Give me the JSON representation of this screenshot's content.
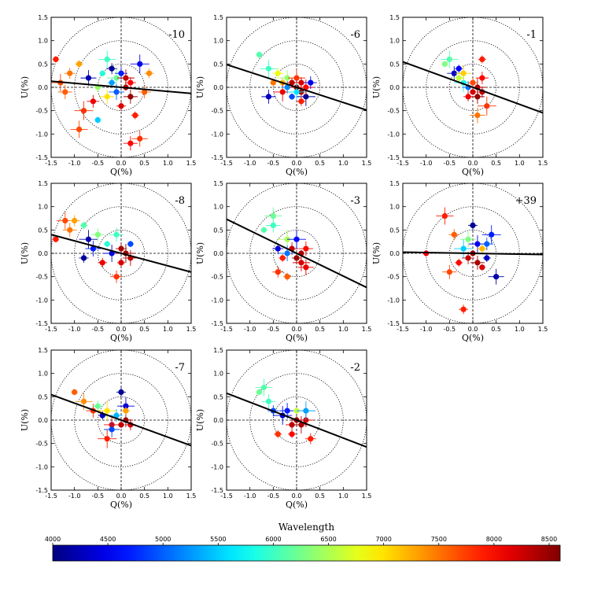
{
  "chart_data": {
    "type": "scatter",
    "description_axes": {
      "xlabel": "Q(%)",
      "ylabel": "U(%)"
    },
    "xlim": [
      -1.5,
      1.5
    ],
    "ylim": [
      -1.5,
      1.5
    ],
    "ticks": [
      "-1.5",
      "-1.0",
      "-0.5",
      "0.0",
      "0.5",
      "1.0",
      "1.5"
    ],
    "tick_values": [
      -1.5,
      -1.0,
      -0.5,
      0.0,
      0.5,
      1.0,
      1.5
    ],
    "circle_radii": [
      0.5,
      1.0,
      1.5
    ],
    "colorbar": {
      "title": "Wavelength",
      "min": 4000,
      "max": 8600,
      "ticks": [
        "4000",
        "4500",
        "5000",
        "5500",
        "6000",
        "6500",
        "7000",
        "7500",
        "8000",
        "8500"
      ],
      "tick_values": [
        4000,
        4500,
        5000,
        5500,
        6000,
        6500,
        7000,
        7500,
        8000,
        8500
      ]
    },
    "panels": [
      {
        "label": "-10",
        "axis_angle_deg": -5,
        "points": [
          [
            -1.4,
            0.6,
            7900
          ],
          [
            -1.3,
            0.1,
            7700
          ],
          [
            -1.2,
            -0.1,
            7600
          ],
          [
            -1.1,
            0.3,
            7500
          ],
          [
            -0.9,
            0.5,
            7300
          ],
          [
            -0.8,
            -0.5,
            7800
          ],
          [
            -0.7,
            0.2,
            4200
          ],
          [
            -0.6,
            -0.3,
            8100
          ],
          [
            -0.5,
            0.0,
            6400
          ],
          [
            -0.4,
            0.3,
            5900
          ],
          [
            -0.3,
            0.6,
            6000
          ],
          [
            -0.3,
            -0.2,
            7000
          ],
          [
            -0.2,
            0.4,
            4100
          ],
          [
            -0.2,
            0.1,
            5300
          ],
          [
            -0.1,
            0.2,
            6200
          ],
          [
            -0.1,
            -0.1,
            5000
          ],
          [
            0.0,
            0.3,
            4700
          ],
          [
            0.0,
            -0.4,
            8200
          ],
          [
            0.1,
            0.0,
            8400
          ],
          [
            0.1,
            0.2,
            8300
          ],
          [
            0.2,
            -0.2,
            8500
          ],
          [
            0.2,
            0.1,
            8000
          ],
          [
            0.3,
            -0.6,
            7900
          ],
          [
            0.4,
            0.5,
            4500
          ],
          [
            0.4,
            -1.1,
            7800
          ],
          [
            0.5,
            -0.1,
            7600
          ],
          [
            0.6,
            0.3,
            7400
          ],
          [
            -0.5,
            -0.7,
            5500
          ],
          [
            -0.9,
            -0.9,
            7700
          ],
          [
            0.2,
            -1.2,
            8000
          ]
        ]
      },
      {
        "label": "-6",
        "axis_angle_deg": -18,
        "points": [
          [
            -0.8,
            0.7,
            6100
          ],
          [
            -0.6,
            0.4,
            6000
          ],
          [
            -0.6,
            -0.2,
            4300
          ],
          [
            -0.4,
            0.3,
            6800
          ],
          [
            -0.3,
            0.1,
            7200
          ],
          [
            -0.3,
            -0.1,
            8100
          ],
          [
            -0.2,
            0.2,
            6400
          ],
          [
            -0.2,
            0.0,
            5200
          ],
          [
            -0.1,
            0.1,
            8300
          ],
          [
            -0.1,
            -0.2,
            4900
          ],
          [
            0.0,
            0.2,
            7800
          ],
          [
            0.0,
            0.0,
            8500
          ],
          [
            0.1,
            0.1,
            8200
          ],
          [
            0.1,
            -0.1,
            8400
          ],
          [
            0.2,
            -0.2,
            4100
          ],
          [
            0.2,
            0.0,
            8000
          ],
          [
            0.3,
            0.1,
            4500
          ],
          [
            0.1,
            -0.3,
            7900
          ],
          [
            -0.5,
            0.1,
            7500
          ],
          [
            0.0,
            -0.1,
            5600
          ]
        ]
      },
      {
        "label": "-1",
        "axis_angle_deg": -20,
        "points": [
          [
            -0.6,
            0.5,
            6300
          ],
          [
            -0.5,
            0.6,
            6100
          ],
          [
            -0.4,
            0.3,
            4300
          ],
          [
            -0.3,
            0.2,
            6600
          ],
          [
            -0.3,
            0.4,
            4600
          ],
          [
            -0.2,
            0.1,
            5800
          ],
          [
            -0.2,
            0.3,
            7100
          ],
          [
            -0.1,
            0.0,
            5100
          ],
          [
            0.0,
            0.1,
            7700
          ],
          [
            0.0,
            -0.1,
            8200
          ],
          [
            0.1,
            0.0,
            8400
          ],
          [
            0.1,
            -0.2,
            8500
          ],
          [
            0.2,
            -0.1,
            8300
          ],
          [
            0.2,
            0.6,
            7900
          ],
          [
            0.3,
            -0.4,
            7800
          ],
          [
            0.1,
            -0.6,
            7500
          ],
          [
            0.2,
            0.2,
            8000
          ],
          [
            -0.1,
            -0.2,
            8100
          ]
        ]
      },
      {
        "label": "-8",
        "axis_angle_deg": -15,
        "points": [
          [
            -1.4,
            0.3,
            7900
          ],
          [
            -1.2,
            0.7,
            7700
          ],
          [
            -1.1,
            0.5,
            7500
          ],
          [
            -1.0,
            0.7,
            7300
          ],
          [
            -0.8,
            0.6,
            6100
          ],
          [
            -0.7,
            0.3,
            4200
          ],
          [
            -0.6,
            0.1,
            4700
          ],
          [
            -0.5,
            0.4,
            6300
          ],
          [
            -0.4,
            -0.2,
            8100
          ],
          [
            -0.3,
            0.2,
            5900
          ],
          [
            -0.2,
            0.0,
            4400
          ],
          [
            -0.1,
            0.4,
            6000
          ],
          [
            0.0,
            0.1,
            8400
          ],
          [
            0.0,
            -0.2,
            8200
          ],
          [
            0.1,
            0.0,
            8500
          ],
          [
            0.2,
            -0.1,
            8300
          ],
          [
            -0.1,
            -0.5,
            7800
          ],
          [
            -0.8,
            -0.1,
            4100
          ],
          [
            0.2,
            0.2,
            4900
          ]
        ]
      },
      {
        "label": "-3",
        "axis_angle_deg": -26,
        "points": [
          [
            -0.7,
            0.5,
            6100
          ],
          [
            -0.5,
            0.8,
            6200
          ],
          [
            -0.5,
            0.6,
            6000
          ],
          [
            -0.4,
            0.1,
            4400
          ],
          [
            -0.3,
            -0.1,
            7900
          ],
          [
            -0.2,
            0.3,
            6500
          ],
          [
            -0.2,
            0.0,
            5100
          ],
          [
            -0.1,
            0.1,
            8300
          ],
          [
            0.0,
            -0.1,
            8500
          ],
          [
            0.1,
            0.0,
            8400
          ],
          [
            0.1,
            -0.2,
            8200
          ],
          [
            0.2,
            0.1,
            8000
          ],
          [
            -0.4,
            -0.4,
            7800
          ],
          [
            -0.2,
            -0.5,
            7600
          ],
          [
            0.0,
            0.3,
            4600
          ],
          [
            0.2,
            -0.3,
            8100
          ]
        ]
      },
      {
        "label": "+39",
        "axis_angle_deg": -1,
        "points": [
          [
            -1.0,
            0.0,
            8100
          ],
          [
            -0.6,
            0.8,
            7900
          ],
          [
            -0.5,
            -0.4,
            7700
          ],
          [
            -0.4,
            0.4,
            7600
          ],
          [
            -0.3,
            -0.2,
            8000
          ],
          [
            -0.2,
            0.1,
            5500
          ],
          [
            -0.1,
            0.3,
            6300
          ],
          [
            -0.1,
            -0.1,
            8300
          ],
          [
            0.0,
            0.6,
            4100
          ],
          [
            0.0,
            0.0,
            8500
          ],
          [
            0.1,
            0.2,
            4500
          ],
          [
            0.1,
            -0.2,
            8400
          ],
          [
            0.2,
            0.1,
            7200
          ],
          [
            0.3,
            -0.1,
            4300
          ],
          [
            0.4,
            0.4,
            4700
          ],
          [
            0.5,
            -0.5,
            4200
          ],
          [
            0.3,
            0.2,
            5000
          ],
          [
            -0.2,
            -1.2,
            7900
          ],
          [
            0.2,
            -0.3,
            8200
          ]
        ]
      },
      {
        "label": "-7",
        "axis_angle_deg": -20,
        "points": [
          [
            -1.0,
            0.6,
            7600
          ],
          [
            -0.8,
            0.4,
            7400
          ],
          [
            -0.6,
            0.2,
            7800
          ],
          [
            -0.5,
            0.3,
            6200
          ],
          [
            -0.4,
            0.1,
            4300
          ],
          [
            -0.3,
            0.2,
            7000
          ],
          [
            -0.2,
            -0.1,
            8100
          ],
          [
            -0.1,
            0.1,
            5400
          ],
          [
            0.0,
            0.6,
            4100
          ],
          [
            0.0,
            -0.1,
            8300
          ],
          [
            0.1,
            0.3,
            4400
          ],
          [
            0.1,
            0.0,
            8500
          ],
          [
            0.2,
            -0.1,
            8200
          ],
          [
            0.1,
            0.2,
            7300
          ],
          [
            -0.3,
            -0.4,
            7900
          ],
          [
            -0.2,
            -0.2,
            4900
          ]
        ]
      },
      {
        "label": "-2",
        "axis_angle_deg": -21,
        "points": [
          [
            -0.8,
            0.6,
            6200
          ],
          [
            -0.7,
            0.7,
            6100
          ],
          [
            -0.6,
            0.4,
            6000
          ],
          [
            -0.5,
            0.2,
            4900
          ],
          [
            -0.4,
            -0.3,
            7800
          ],
          [
            -0.3,
            0.1,
            4400
          ],
          [
            -0.2,
            0.2,
            4700
          ],
          [
            -0.1,
            -0.1,
            8300
          ],
          [
            0.0,
            0.0,
            8500
          ],
          [
            0.0,
            0.2,
            6600
          ],
          [
            0.1,
            -0.1,
            8400
          ],
          [
            0.2,
            0.0,
            8200
          ],
          [
            0.3,
            -0.4,
            7900
          ],
          [
            -0.1,
            -0.3,
            8000
          ],
          [
            0.2,
            0.2,
            5300
          ]
        ]
      }
    ]
  }
}
